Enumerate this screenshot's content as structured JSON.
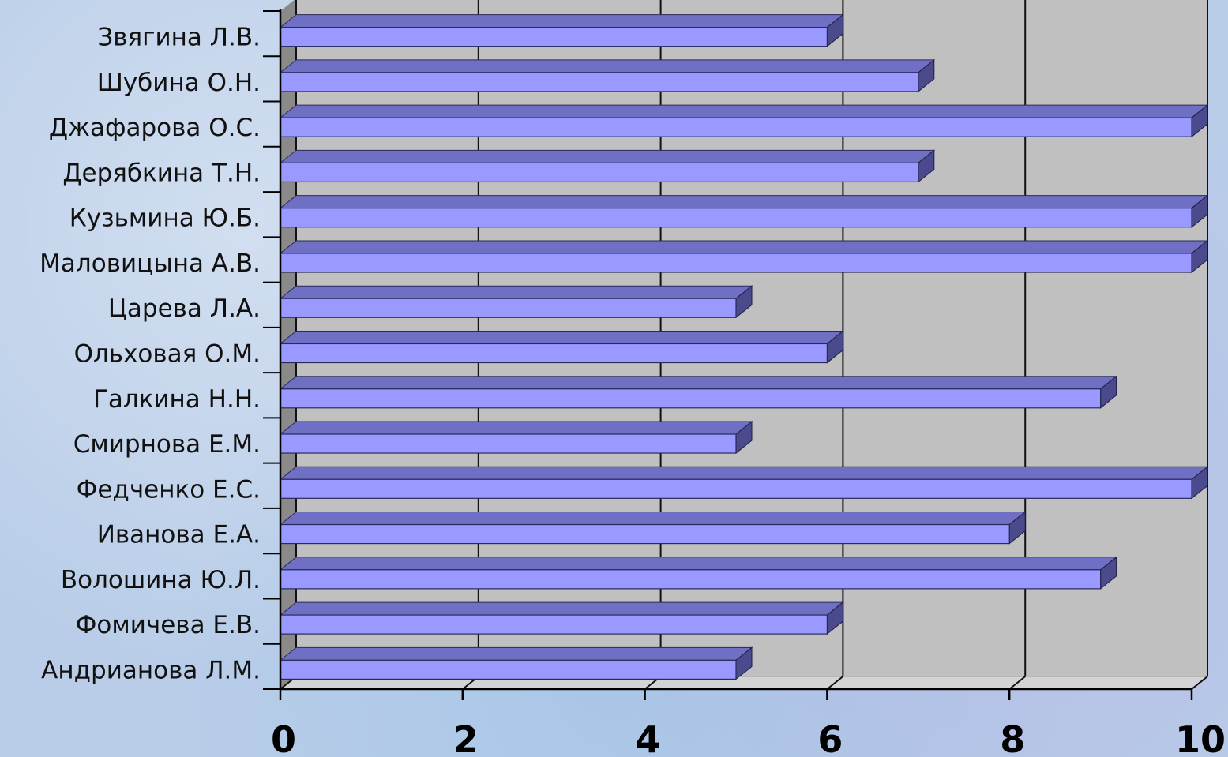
{
  "chart_data": {
    "type": "bar",
    "orientation": "horizontal",
    "style": "3d",
    "title": "",
    "xlabel": "",
    "ylabel": "",
    "categories": [
      "Звягина Л.В.",
      "Шубина О.Н.",
      "Джафарова О.С.",
      "Дерябкина Т.Н.",
      "Кузьмина Ю.Б.",
      "Маловицына А.В.",
      "Царева Л.А.",
      "Ольховая О.М.",
      "Галкина Н.Н.",
      "Смирнова Е.М.",
      "Федченко Е.С.",
      "Иванова Е.А.",
      "Волошина Ю.Л.",
      "Фомичева Е.В.",
      "Андрианова Л.М."
    ],
    "values": [
      6,
      7,
      10,
      7,
      10,
      10,
      5,
      6,
      9,
      5,
      10,
      8,
      9,
      6,
      5
    ],
    "xlim": [
      0,
      10
    ],
    "ticks": [
      "0",
      "2",
      "4",
      "6",
      "8",
      "10"
    ],
    "grid": true,
    "legend": false,
    "colors": {
      "bar_front": "#9999ff",
      "bar_top": "#6f6fc4",
      "bar_side": "#4a4a8c",
      "plot_back": "#c0c0c0",
      "plot_wall": "#8a8a8a",
      "grid": "#111111"
    }
  }
}
